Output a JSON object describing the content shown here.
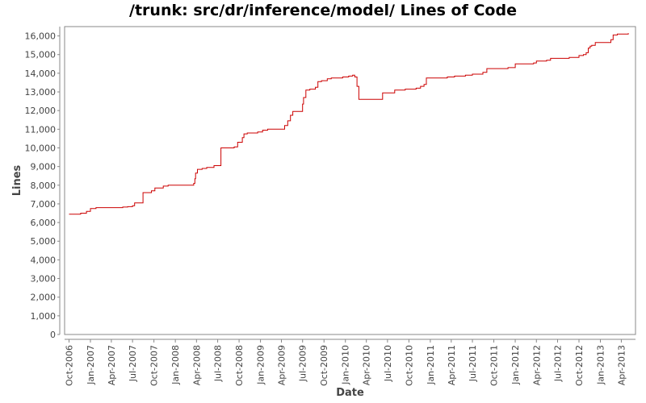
{
  "chart_data": {
    "type": "line",
    "title": "/trunk: src/dr/inference/model/ Lines of Code",
    "xlabel": "Date",
    "ylabel": "Lines",
    "ylim": [
      0,
      16500
    ],
    "xlim": [
      "2006-09-12",
      "2013-06-01"
    ],
    "y_ticks": [
      0,
      1000,
      2000,
      3000,
      4000,
      5000,
      6000,
      7000,
      8000,
      9000,
      10000,
      11000,
      12000,
      13000,
      14000,
      15000,
      16000
    ],
    "y_tick_labels": [
      "0",
      "1,000",
      "2,000",
      "3,000",
      "4,000",
      "5,000",
      "6,000",
      "7,000",
      "8,000",
      "9,000",
      "10,000",
      "11,000",
      "12,000",
      "13,000",
      "14,000",
      "15,000",
      "16,000"
    ],
    "x_ticks": [
      "2006-10-01",
      "2007-01-01",
      "2007-04-01",
      "2007-07-01",
      "2007-10-01",
      "2008-01-01",
      "2008-04-01",
      "2008-07-01",
      "2008-10-01",
      "2009-01-01",
      "2009-04-01",
      "2009-07-01",
      "2009-10-01",
      "2010-01-01",
      "2010-04-01",
      "2010-07-01",
      "2010-10-01",
      "2011-01-01",
      "2011-04-01",
      "2011-07-01",
      "2011-10-01",
      "2012-01-01",
      "2012-04-01",
      "2012-07-01",
      "2012-10-01",
      "2013-01-01",
      "2013-04-01"
    ],
    "x_tick_labels": [
      "Oct-2006",
      "Jan-2007",
      "Apr-2007",
      "Jul-2007",
      "Oct-2007",
      "Jan-2008",
      "Apr-2008",
      "Jul-2008",
      "Oct-2008",
      "Jan-2009",
      "Apr-2009",
      "Jul-2009",
      "Oct-2009",
      "Jan-2010",
      "Apr-2010",
      "Jul-2010",
      "Oct-2010",
      "Jan-2011",
      "Apr-2011",
      "Jul-2011",
      "Oct-2011",
      "Jan-2012",
      "Apr-2012",
      "Jul-2012",
      "Oct-2012",
      "Jan-2013",
      "Apr-2013"
    ],
    "grid": false,
    "series": [
      {
        "color": "#cc0000",
        "step": true,
        "x": [
          "2006-10-01",
          "2006-11-20",
          "2006-12-15",
          "2007-01-01",
          "2007-01-25",
          "2007-05-20",
          "2007-06-10",
          "2007-07-01",
          "2007-07-10",
          "2007-08-15",
          "2007-09-01",
          "2007-09-20",
          "2007-10-05",
          "2007-11-10",
          "2007-12-01",
          "2008-03-20",
          "2008-03-25",
          "2008-03-28",
          "2008-04-05",
          "2008-04-25",
          "2008-05-15",
          "2008-06-15",
          "2008-07-05",
          "2008-07-15",
          "2008-09-10",
          "2008-09-25",
          "2008-10-15",
          "2008-10-22",
          "2008-11-05",
          "2008-12-20",
          "2009-01-10",
          "2009-02-01",
          "2009-04-15",
          "2009-04-28",
          "2009-05-10",
          "2009-05-20",
          "2009-06-20",
          "2009-07-01",
          "2009-07-05",
          "2009-07-15",
          "2009-08-01",
          "2009-08-25",
          "2009-09-05",
          "2009-09-20",
          "2009-10-15",
          "2009-11-01",
          "2009-12-10",
          "2009-12-20",
          "2010-01-15",
          "2010-02-01",
          "2010-02-10",
          "2010-02-20",
          "2010-02-28",
          "2010-05-15",
          "2010-06-10",
          "2010-07-15",
          "2010-08-01",
          "2010-09-15",
          "2010-11-01",
          "2010-11-20",
          "2010-12-05",
          "2010-12-15",
          "2011-03-15",
          "2011-04-15",
          "2011-06-01",
          "2011-07-01",
          "2011-08-15",
          "2011-09-01",
          "2011-12-01",
          "2012-01-01",
          "2012-03-20",
          "2012-04-01",
          "2012-05-15",
          "2012-06-01",
          "2012-08-20",
          "2012-09-01",
          "2012-10-01",
          "2012-10-20",
          "2012-11-01",
          "2012-11-10",
          "2012-11-18",
          "2012-11-25",
          "2012-12-10",
          "2013-01-15",
          "2013-02-15",
          "2013-02-25",
          "2013-03-15",
          "2013-05-01"
        ],
        "values": [
          6450,
          6500,
          6600,
          6750,
          6800,
          6830,
          6850,
          6900,
          7050,
          7600,
          7600,
          7700,
          7850,
          7950,
          8000,
          8100,
          8350,
          8650,
          8850,
          8900,
          8950,
          9050,
          9050,
          10000,
          10050,
          10300,
          10550,
          10750,
          10800,
          10850,
          10950,
          11000,
          11200,
          11450,
          11750,
          11950,
          11950,
          12350,
          12700,
          13100,
          13150,
          13250,
          13550,
          13600,
          13700,
          13750,
          13750,
          13800,
          13850,
          13900,
          13800,
          13300,
          12600,
          12600,
          12950,
          12950,
          13100,
          13150,
          13200,
          13300,
          13400,
          13750,
          13800,
          13850,
          13900,
          13950,
          14050,
          14250,
          14300,
          14500,
          14550,
          14650,
          14700,
          14800,
          14850,
          14850,
          14950,
          15000,
          15100,
          15350,
          15450,
          15500,
          15650,
          15650,
          15800,
          16050,
          16100,
          16150
        ]
      }
    ]
  }
}
